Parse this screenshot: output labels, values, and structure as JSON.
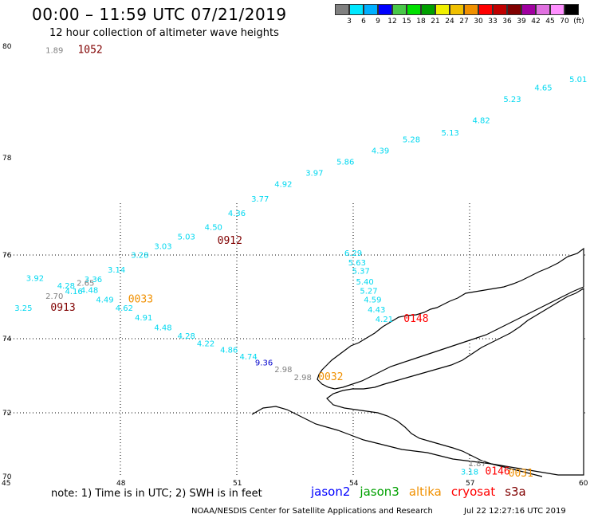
{
  "title": "00:00 – 11:59 UTC 07/21/2019",
  "subtitle": "12 hour collection of altimeter wave heights",
  "colorbar": {
    "colors": [
      "#808080",
      "#00e8ff",
      "#00b0ff",
      "#0000ff",
      "#48c848",
      "#00e000",
      "#00a000",
      "#f0f000",
      "#f0c000",
      "#f09000",
      "#ff0000",
      "#c00000",
      "#800000",
      "#a000a0",
      "#e070e0",
      "#ff90ff",
      "#000000"
    ],
    "labels": [
      "3",
      "6",
      "9",
      "12",
      "15",
      "18",
      "21",
      "24",
      "27",
      "30",
      "33",
      "36",
      "39",
      "42",
      "45",
      "70",
      "(ft)"
    ]
  },
  "axes": {
    "lat_ticks": [
      "80",
      "78",
      "76",
      "74",
      "72",
      "70"
    ],
    "lon_ticks": [
      "45",
      "48",
      "51",
      "54",
      "57",
      "60"
    ]
  },
  "points": [
    {
      "lon": 46.3,
      "lat": 79.88,
      "v": "1.89",
      "c": "#808080"
    },
    {
      "lon": 59.8,
      "lat": 79.36,
      "v": "5.01",
      "c": "#00d8f0"
    },
    {
      "lon": 58.9,
      "lat": 79.21,
      "v": "4.65",
      "c": "#00d8f0"
    },
    {
      "lon": 58.1,
      "lat": 79.0,
      "v": "5.23",
      "c": "#00d8f0"
    },
    {
      "lon": 57.3,
      "lat": 78.62,
      "v": "4.82",
      "c": "#00d8f0"
    },
    {
      "lon": 56.5,
      "lat": 78.4,
      "v": "5.13",
      "c": "#00d8f0"
    },
    {
      "lon": 55.5,
      "lat": 78.28,
      "v": "5.28",
      "c": "#00d8f0"
    },
    {
      "lon": 54.7,
      "lat": 78.08,
      "v": "4.39",
      "c": "#00d8f0"
    },
    {
      "lon": 53.8,
      "lat": 77.86,
      "v": "5.86",
      "c": "#00d8f0"
    },
    {
      "lon": 53.0,
      "lat": 77.63,
      "v": "3.97",
      "c": "#00d8f0"
    },
    {
      "lon": 52.2,
      "lat": 77.4,
      "v": "4.92",
      "c": "#00d8f0"
    },
    {
      "lon": 51.6,
      "lat": 77.1,
      "v": "3.77",
      "c": "#00d8f0"
    },
    {
      "lon": 51.0,
      "lat": 76.8,
      "v": "4.36",
      "c": "#00d8f0"
    },
    {
      "lon": 50.4,
      "lat": 76.52,
      "v": "4.50",
      "c": "#00d8f0"
    },
    {
      "lon": 49.7,
      "lat": 76.32,
      "v": "5.03",
      "c": "#00d8f0"
    },
    {
      "lon": 49.1,
      "lat": 76.12,
      "v": "3.03",
      "c": "#00d8f0"
    },
    {
      "lon": 48.5,
      "lat": 75.93,
      "v": "3.28",
      "c": "#00d8f0"
    },
    {
      "lon": 47.9,
      "lat": 75.58,
      "v": "3.14",
      "c": "#00d8f0"
    },
    {
      "lon": 47.3,
      "lat": 75.35,
      "v": "3.36",
      "c": "#00d8f0"
    },
    {
      "lon": 45.8,
      "lat": 75.38,
      "v": "3.92",
      "c": "#00d8f0"
    },
    {
      "lon": 46.6,
      "lat": 75.2,
      "v": "4.28",
      "c": "#00d8f0"
    },
    {
      "lon": 46.8,
      "lat": 75.07,
      "v": "4.16",
      "c": "#00d8f0"
    },
    {
      "lon": 47.2,
      "lat": 75.1,
      "v": "4.48",
      "c": "#00d8f0"
    },
    {
      "lon": 47.6,
      "lat": 74.87,
      "v": "4.49",
      "c": "#00d8f0"
    },
    {
      "lon": 45.5,
      "lat": 74.67,
      "v": "3.25",
      "c": "#00d8f0"
    },
    {
      "lon": 48.1,
      "lat": 74.67,
      "v": "4.62",
      "c": "#00d8f0"
    },
    {
      "lon": 48.6,
      "lat": 74.44,
      "v": "4.91",
      "c": "#00d8f0"
    },
    {
      "lon": 49.1,
      "lat": 74.2,
      "v": "4.48",
      "c": "#00d8f0"
    },
    {
      "lon": 49.7,
      "lat": 74.0,
      "v": "4.28",
      "c": "#00d8f0"
    },
    {
      "lon": 50.2,
      "lat": 73.8,
      "v": "4.22",
      "c": "#00d8f0"
    },
    {
      "lon": 50.8,
      "lat": 73.62,
      "v": "4.86",
      "c": "#00d8f0"
    },
    {
      "lon": 51.3,
      "lat": 73.44,
      "v": "4.74",
      "c": "#00d8f0"
    },
    {
      "lon": 51.7,
      "lat": 73.28,
      "v": "9.36",
      "c": "#0000cc"
    },
    {
      "lon": 52.2,
      "lat": 73.1,
      "v": "2.98",
      "c": "#808080"
    },
    {
      "lon": 52.7,
      "lat": 72.88,
      "v": "2.98",
      "c": "#808080"
    },
    {
      "lon": 54.0,
      "lat": 75.98,
      "v": "6.29",
      "c": "#00d8f0"
    },
    {
      "lon": 54.1,
      "lat": 75.75,
      "v": "5.63",
      "c": "#00d8f0"
    },
    {
      "lon": 54.2,
      "lat": 75.55,
      "v": "5.37",
      "c": "#00d8f0"
    },
    {
      "lon": 54.3,
      "lat": 75.3,
      "v": "5.40",
      "c": "#00d8f0"
    },
    {
      "lon": 54.4,
      "lat": 75.08,
      "v": "5.27",
      "c": "#00d8f0"
    },
    {
      "lon": 54.5,
      "lat": 74.87,
      "v": "4.59",
      "c": "#00d8f0"
    },
    {
      "lon": 54.6,
      "lat": 74.63,
      "v": "4.43",
      "c": "#00d8f0"
    },
    {
      "lon": 54.8,
      "lat": 74.4,
      "v": "4.21",
      "c": "#00d8f0"
    },
    {
      "lon": 46.3,
      "lat": 74.95,
      "v": "2.70",
      "c": "#808080"
    },
    {
      "lon": 47.1,
      "lat": 75.27,
      "v": "2.65",
      "c": "#808080"
    },
    {
      "lon": 57.2,
      "lat": 70.32,
      "v": "1.87",
      "c": "#808080"
    },
    {
      "lon": 57.0,
      "lat": 70.06,
      "v": "3.18",
      "c": "#00d8f0"
    }
  ],
  "passes": [
    {
      "lon": 46.9,
      "lat": 79.88,
      "t": "1052",
      "c": "#800000"
    },
    {
      "lon": 50.5,
      "lat": 76.23,
      "t": "0912",
      "c": "#800000"
    },
    {
      "lon": 46.2,
      "lat": 74.67,
      "t": "0913",
      "c": "#800000"
    },
    {
      "lon": 48.2,
      "lat": 74.87,
      "t": "0033",
      "c": "#f09000"
    },
    {
      "lon": 53.1,
      "lat": 72.88,
      "t": "0032",
      "c": "#f09000"
    },
    {
      "lon": 55.3,
      "lat": 74.4,
      "t": "0148",
      "c": "#ff0000"
    },
    {
      "lon": 57.4,
      "lat": 70.06,
      "t": "0146",
      "c": "#ff0000"
    },
    {
      "lon": 58.0,
      "lat": 70.0,
      "t": "0031",
      "c": "#f09000"
    }
  ],
  "note": "note: 1) Time is in UTC; 2) SWH is in feet",
  "satellites": [
    {
      "name": "jason2",
      "c": "#0000ff"
    },
    {
      "name": "jason3",
      "c": "#00a000"
    },
    {
      "name": "altika",
      "c": "#f09000"
    },
    {
      "name": "cryosat",
      "c": "#ff0000"
    },
    {
      "name": "s3a",
      "c": "#800000"
    }
  ],
  "footer": "NOAA/NESDIS Center for Satellite Applications and Research",
  "footer_time": "Jul 22 12:27:16 UTC 2019"
}
